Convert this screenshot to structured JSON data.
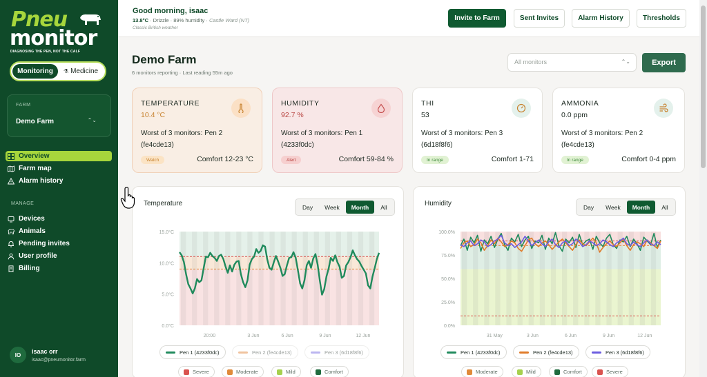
{
  "app": {
    "logo_top": "Pneu",
    "logo_bottom": "monitor",
    "tagline": "DIAGNOSING THE PEN, NOT THE CALF"
  },
  "mode": {
    "monitoring": "Monitoring",
    "medicine": "Medicine"
  },
  "farm_selector": {
    "label": "FARM",
    "value": "Demo Farm"
  },
  "nav": {
    "overview": "Overview",
    "farm_map": "Farm map",
    "alarm_history": "Alarm history",
    "manage_label": "MANAGE",
    "devices": "Devices",
    "animals": "Animals",
    "pending_invites": "Pending invites",
    "user_profile": "User profile",
    "billing": "Billing"
  },
  "user": {
    "initials": "IO",
    "name": "isaac orr",
    "email": "isaac@pneumonitor.farm"
  },
  "header": {
    "greeting": "Good morning, isaac",
    "temp": "13.8°C",
    "weather_mid": " · Drizzle · 89% humidity · ",
    "location": "Castle Ward (NT)",
    "weather_sub": "Classic British weather",
    "invite": "Invite to Farm",
    "sent": "Sent Invites",
    "alarms": "Alarm History",
    "thresholds": "Thresholds"
  },
  "page": {
    "title": "Demo Farm",
    "subtitle": "6 monitors reporting · Last reading 55m ago",
    "monitor_select": "All monitors",
    "export": "Export"
  },
  "metrics": [
    {
      "name": "TEMPERATURE",
      "value": "10.4 °C",
      "worst1": "Worst of 3 monitors: Pen 2",
      "worst2": "(fe4cde13)",
      "badge": "Watch",
      "comfort": "Comfort 12-23 °C",
      "value_color": "#c7822f",
      "badge_bg": "#fbe3c4",
      "badge_fg": "#c7822f",
      "icon": "thermometer-icon",
      "icon_bg": "#fbe0c5",
      "icon_color": "#c7822f"
    },
    {
      "name": "HUMIDITY",
      "value": "92.7 %",
      "worst1": "Worst of 3 monitors: Pen 1",
      "worst2": "(4233f0dc)",
      "badge": "Alert",
      "comfort": "Comfort 59-84 %",
      "value_color": "#b7423f",
      "badge_bg": "#f6cfcf",
      "badge_fg": "#b7423f",
      "icon": "droplet-icon",
      "icon_bg": "#f6d3d3",
      "icon_color": "#c44b4b"
    },
    {
      "name": "THI",
      "value": "53",
      "worst1": "Worst of 3 monitors: Pen 3",
      "worst2": "(6d18f8f6)",
      "badge": "In range",
      "comfort": "Comfort 1-71",
      "value_color": "#1d2a22",
      "badge_bg": "#e1f2d3",
      "badge_fg": "#3f8a3c",
      "icon": "gauge-icon",
      "icon_bg": "#e4f1ec",
      "icon_color": "#c7822f"
    },
    {
      "name": "AMMONIA",
      "value": "0.0 ppm",
      "worst1": "Worst of 3 monitors: Pen 2",
      "worst2": "(fe4cde13)",
      "badge": "In range",
      "comfort": "Comfort 0-4 ppm",
      "value_color": "#1d2a22",
      "badge_bg": "#e1f2d3",
      "badge_fg": "#3f8a3c",
      "icon": "wind-icon",
      "icon_bg": "#e4f1ec",
      "icon_color": "#c7822f"
    }
  ],
  "ranges": [
    "Day",
    "Week",
    "Month",
    "All"
  ],
  "active_range": "Month",
  "temperature_panel": {
    "title": "Temperature",
    "legend": [
      "Pen 1 (4233f0dc)",
      "Pen 2 (fe4cde13)",
      "Pen 3 (6d18f8f6)"
    ],
    "zones": [
      "Severe",
      "Moderate",
      "Mild",
      "Comfort"
    ]
  },
  "humidity_panel": {
    "title": "Humidity",
    "legend": [
      "Pen 1 (4233f0dc)",
      "Pen 2 (fe4cde13)",
      "Pen 3 (6d18f8f6)"
    ],
    "zones": [
      "Moderate",
      "Mild",
      "Comfort",
      "Severe"
    ]
  },
  "colors": {
    "pen1": "#1f8a5c",
    "pen2": "#e07b29",
    "pen3": "#6b5ce0",
    "severe": "#d9534f",
    "moderate": "#e08a3a",
    "mild": "#a6d04e",
    "comfort": "#1f6b3e"
  },
  "chart_data": [
    {
      "type": "line",
      "title": "Temperature",
      "ylim": [
        0,
        15
      ],
      "yticks": [
        "0.0°C",
        "5.0°C",
        "10.0°C",
        "15.0°C"
      ],
      "xticks": [
        "20:00",
        "3 Jun",
        "6 Jun",
        "9 Jun",
        "12 Jun"
      ],
      "dashed_lines": [
        11,
        9
      ],
      "series": [
        {
          "name": "Pen 1 (4233f0dc)",
          "values": [
            11.7,
            11.2,
            10.1,
            8.2,
            6.6,
            5.9,
            5.1,
            5.9,
            7.4,
            6.9,
            7.2,
            9.1,
            11.0,
            10.9,
            11.6,
            11.1,
            10.8,
            10.3,
            11.1,
            11.3,
            10.6,
            9.4,
            8.4,
            9.6,
            8.6,
            9.7,
            10.2,
            10.3,
            8.2,
            6.9,
            6.1,
            7.2,
            9.7,
            10.6,
            11.0,
            12.2,
            11.6,
            11.9,
            12.8,
            12.6,
            10.6,
            9.2,
            8.9,
            10.1,
            11.1,
            10.2,
            9.2,
            7.9,
            8.2,
            9.6,
            10.8,
            10.9,
            11.7,
            10.8,
            8.8,
            6.7,
            5.9,
            7.2,
            9.6,
            10.3,
            9.2,
            10.7,
            11.4,
            9.7,
            7.1,
            4.9,
            5.8,
            7.8,
            9.1,
            10.8,
            10.3,
            11.2,
            10.1,
            9.4,
            7.6,
            7.9,
            9.6,
            10.1,
            10.9,
            12.0,
            11.2,
            10.6,
            10.2,
            9.5,
            8.9,
            8.3,
            6.4,
            5.9,
            7.8,
            9.1,
            10.6,
            11.6
          ]
        },
        {
          "name": "Pen 2 (fe4cde13)",
          "values": []
        },
        {
          "name": "Pen 3 (6d18f8f6)",
          "values": []
        }
      ]
    },
    {
      "type": "line",
      "title": "Humidity",
      "ylim": [
        0,
        100
      ],
      "yticks": [
        "0.0%",
        "25.0%",
        "50.0%",
        "75.0%",
        "100.0%"
      ],
      "xticks": [
        "31 May",
        "3 Jun",
        "6 Jun",
        "9 Jun",
        "12 Jun"
      ],
      "dashed_lines": [
        90,
        85,
        10
      ],
      "series": [
        {
          "name": "Pen 1 (4233f0dc)",
          "values": [
            85,
            92,
            80,
            94,
            88,
            96,
            79,
            91,
            87,
            95,
            83,
            92,
            98,
            86,
            80,
            93,
            89,
            97,
            84,
            91,
            95,
            82,
            90,
            88,
            96,
            81,
            93,
            87,
            99,
            85,
            79,
            92,
            88,
            94,
            83,
            97,
            86,
            90,
            92,
            81,
            95,
            88,
            84,
            93,
            97,
            86,
            82,
            91,
            89,
            95,
            84,
            92,
            87,
            80,
            94,
            90,
            86,
            98,
            83,
            91
          ]
        },
        {
          "name": "Pen 2 (fe4cde13)",
          "values": [
            82,
            88,
            90,
            84,
            86,
            92,
            88,
            80,
            85,
            91,
            87,
            93,
            89,
            84,
            86,
            90,
            88,
            82,
            79,
            85,
            91,
            93,
            87,
            84,
            88,
            90,
            86,
            81,
            85,
            89,
            92,
            88,
            84,
            80,
            86,
            91,
            87,
            85,
            89,
            93,
            88,
            78,
            83,
            87,
            90,
            86,
            84,
            88,
            92,
            85,
            80,
            86,
            89,
            87,
            84,
            91,
            88,
            85,
            82,
            90
          ]
        },
        {
          "name": "Pen 3 (6d18f8f6)",
          "values": [
            86,
            84,
            88,
            90,
            85,
            87,
            91,
            89,
            84,
            86,
            90,
            92,
            96,
            88,
            85,
            87,
            83,
            86,
            89,
            95,
            90,
            85,
            88,
            91,
            87,
            84,
            89,
            92,
            86,
            83,
            88,
            90,
            85,
            87,
            92,
            89,
            84,
            86,
            90,
            88,
            85,
            87,
            91,
            89,
            86,
            84,
            88,
            90,
            93,
            87,
            85,
            89,
            86,
            84,
            88,
            91,
            87,
            85,
            89,
            86
          ]
        }
      ]
    }
  ]
}
